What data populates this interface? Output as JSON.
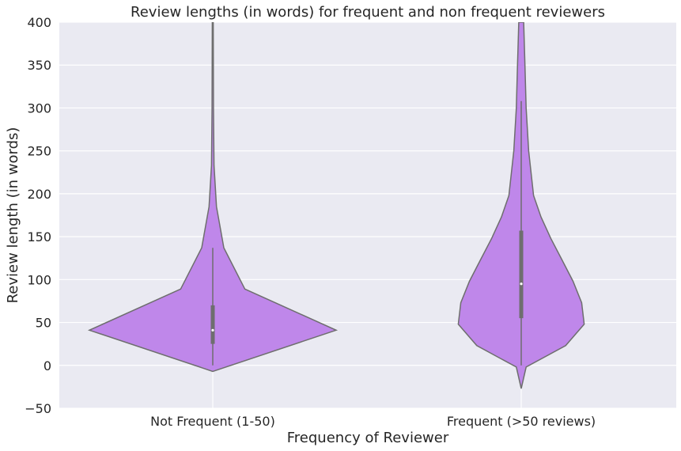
{
  "chart_data": {
    "type": "violin",
    "title": "Review lengths (in words) for frequent and non frequent reviewers",
    "xlabel": "Frequency of Reviewer",
    "ylabel": "Review length (in words)",
    "ylim": [
      -50,
      400
    ],
    "yticks": [
      -50,
      0,
      50,
      100,
      150,
      200,
      250,
      300,
      350,
      400
    ],
    "grid": true,
    "categories": [
      "Not Frequent (1-50)",
      "Frequent (>50 reviews)"
    ],
    "colors": {
      "violin_fill": "#bf87ea",
      "violin_edge": "#6e6e6e",
      "plot_bg": "#eaeaf2",
      "grid": "#ffffff",
      "box": "#6e6e6e",
      "median": "#ffffff"
    },
    "violins": [
      {
        "category": "Not Frequent (1-50)",
        "min": 0,
        "q1": 25,
        "median": 41,
        "q3": 70,
        "whisker_high": 137,
        "density": [
          {
            "y": -7,
            "w": 0.0
          },
          {
            "y": 41,
            "w": 1.0
          },
          {
            "y": 89,
            "w": 0.26
          },
          {
            "y": 137,
            "w": 0.09
          },
          {
            "y": 185,
            "w": 0.03
          },
          {
            "y": 233,
            "w": 0.01
          },
          {
            "y": 300,
            "w": 0.006
          },
          {
            "y": 400,
            "w": 0.004
          }
        ]
      },
      {
        "category": "Frequent (>50 reviews)",
        "min": 0,
        "q1": 55,
        "median": 95,
        "q3": 157,
        "whisker_high": 308,
        "density": [
          {
            "y": -27,
            "w": 0.0
          },
          {
            "y": -2,
            "w": 0.04
          },
          {
            "y": 23,
            "w": 0.36
          },
          {
            "y": 48,
            "w": 0.51
          },
          {
            "y": 73,
            "w": 0.49
          },
          {
            "y": 98,
            "w": 0.42
          },
          {
            "y": 123,
            "w": 0.33
          },
          {
            "y": 148,
            "w": 0.24
          },
          {
            "y": 173,
            "w": 0.16
          },
          {
            "y": 198,
            "w": 0.1
          },
          {
            "y": 250,
            "w": 0.06
          },
          {
            "y": 300,
            "w": 0.04
          },
          {
            "y": 350,
            "w": 0.03
          },
          {
            "y": 400,
            "w": 0.02
          }
        ]
      }
    ]
  }
}
